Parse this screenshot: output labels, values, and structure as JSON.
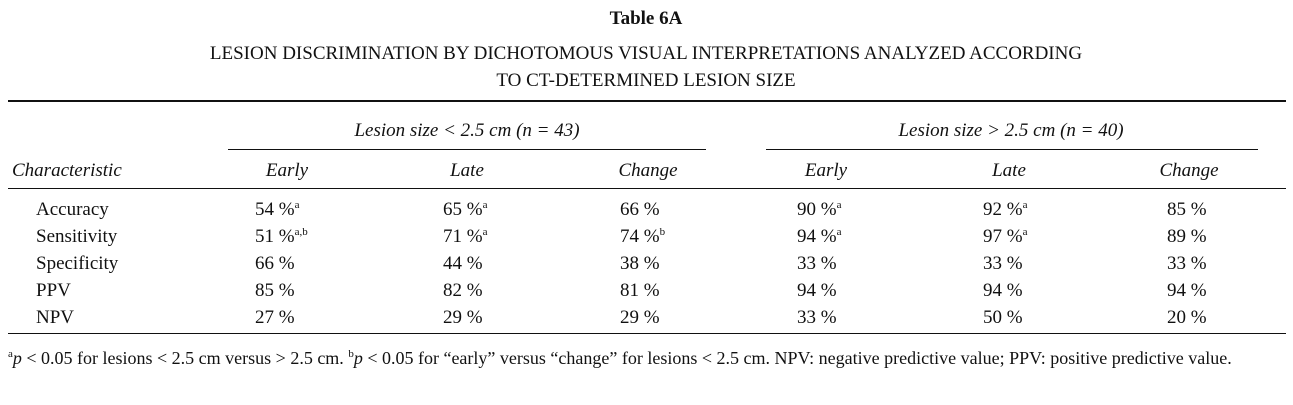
{
  "title": "Table 6A",
  "subtitle": [
    "LESION DISCRIMINATION BY DICHOTOMOUS VISUAL INTERPRETATIONS ANALYZED ACCORDING",
    "TO CT-DETERMINED LESION SIZE"
  ],
  "table": {
    "groups": [
      "Lesion size < 2.5 cm (n = 43)",
      "Lesion size > 2.5 cm (n = 40)"
    ],
    "columns": [
      "Characteristic",
      "Early",
      "Late",
      "Change",
      "Early",
      "Late",
      "Change"
    ],
    "rows": [
      {
        "label": "Accuracy",
        "cells": [
          {
            "text": "54 %",
            "note": "a"
          },
          {
            "text": "65 %",
            "note": "a"
          },
          {
            "text": "66 %"
          },
          {
            "text": "90 %",
            "note": "a"
          },
          {
            "text": "92 %",
            "note": "a"
          },
          {
            "text": "85 %"
          }
        ]
      },
      {
        "label": "Sensitivity",
        "cells": [
          {
            "text": "51 %",
            "note": "a,b"
          },
          {
            "text": "71 %",
            "note": "a"
          },
          {
            "text": "74 %",
            "note": "b"
          },
          {
            "text": "94 %",
            "note": "a"
          },
          {
            "text": "97 %",
            "note": "a"
          },
          {
            "text": "89 %"
          }
        ]
      },
      {
        "label": "Specificity",
        "cells": [
          {
            "text": "66 %"
          },
          {
            "text": "44 %"
          },
          {
            "text": "38 %"
          },
          {
            "text": "33 %"
          },
          {
            "text": "33 %"
          },
          {
            "text": "33 %"
          }
        ]
      },
      {
        "label": "PPV",
        "cells": [
          {
            "text": "85 %"
          },
          {
            "text": "82 %"
          },
          {
            "text": "81 %"
          },
          {
            "text": "94 %"
          },
          {
            "text": "94 %"
          },
          {
            "text": "94 %"
          }
        ]
      },
      {
        "label": "NPV",
        "cells": [
          {
            "text": "27 %"
          },
          {
            "text": "29 %"
          },
          {
            "text": "29 %"
          },
          {
            "text": "33 %"
          },
          {
            "text": "50 %"
          },
          {
            "text": "20 %"
          }
        ]
      }
    ]
  },
  "footnote": [
    {
      "text": "a",
      "style": "sup"
    },
    {
      "text": "p",
      "style": "italic"
    },
    {
      "text": " < 0.05 for lesions < 2.5 cm versus > 2.5 cm. "
    },
    {
      "text": "b",
      "style": "sup"
    },
    {
      "text": "p",
      "style": "italic"
    },
    {
      "text": " < 0.05 for “early” versus “change” for lesions < 2.5 cm. NPV: negative predictive value; PPV: positive predictive value."
    }
  ]
}
